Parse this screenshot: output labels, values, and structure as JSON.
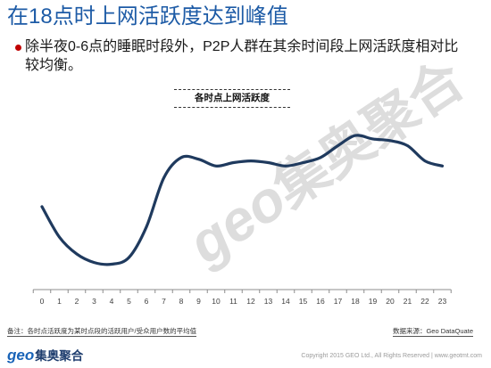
{
  "slide": {
    "title": "在18点时上网活跃度达到峰值",
    "bullet": {
      "lines": [
        "除半夜0-6点的睡眠时段外，P2P人群在其余时间段上网活跃度相对比",
        "较均衡。"
      ]
    }
  },
  "chart_data": {
    "type": "line",
    "title": "各时点上网活跃度",
    "categories": [
      "0",
      "1",
      "2",
      "3",
      "4",
      "5",
      "6",
      "7",
      "8",
      "9",
      "10",
      "11",
      "12",
      "13",
      "14",
      "15",
      "16",
      "17",
      "18",
      "19",
      "20",
      "21",
      "22",
      "23"
    ],
    "values": [
      49,
      31,
      21,
      16,
      15,
      19,
      37,
      66,
      78,
      77,
      73,
      75,
      76,
      75,
      73,
      75,
      78,
      85,
      91,
      89,
      88,
      85,
      76,
      73
    ],
    "ylim": [
      0,
      100
    ],
    "grid": false
  },
  "watermark": {
    "latin": "geo",
    "cjk": "集奥聚合"
  },
  "footer": {
    "note": "备注：各时点活跃度为某时点段的活跃用户/受众用户数的平均值",
    "source": "数据来源：Geo DataQuate",
    "copyright": "Copyright 2015 GEO Ltd., All Rights Reserved | www.geotmt.com",
    "logo": {
      "latin": "geo",
      "cjk": "集奥聚合"
    }
  },
  "colors": {
    "title": "#1d5ba6",
    "bullet": "#c00000",
    "series_line": "#1f3a5e",
    "logo_blue": "#1a64b8",
    "logo_dark": "#1e3d6e"
  }
}
